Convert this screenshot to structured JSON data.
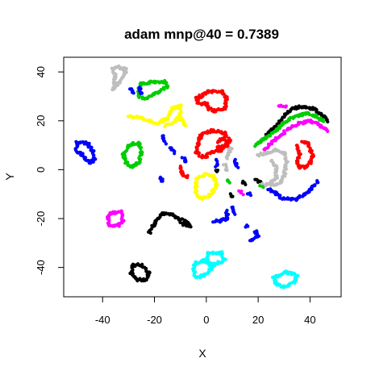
{
  "chart_data": {
    "type": "scatter",
    "title": "adam mnp@40 = 0.7389",
    "xlabel": "X",
    "ylabel": "Y",
    "xlim": [
      -55,
      52
    ],
    "ylim": [
      -52,
      46
    ],
    "xticks": [
      -40,
      -20,
      0,
      20,
      40
    ],
    "yticks": [
      -40,
      -20,
      0,
      20,
      40
    ],
    "grid": false,
    "legend": "none",
    "colors": {
      "black": "#000000",
      "red": "#ff0000",
      "green": "#00cd00",
      "blue": "#0000ff",
      "cyan": "#00ffff",
      "magenta": "#ff00ff",
      "yellow": "#ffff00",
      "gray": "#bebebe"
    },
    "clusters": [
      {
        "kind": "ring",
        "color": "gray",
        "points": [
          [
            -34,
            42
          ],
          [
            -31,
            41
          ],
          [
            -32,
            38
          ],
          [
            -34,
            35
          ],
          [
            -36,
            33
          ],
          [
            -35,
            38
          ],
          [
            -36,
            41
          ],
          [
            -34,
            42
          ]
        ]
      },
      {
        "kind": "ring",
        "color": "green",
        "points": [
          [
            -25,
            35
          ],
          [
            -20,
            36
          ],
          [
            -16,
            36
          ],
          [
            -15,
            34
          ],
          [
            -18,
            32
          ],
          [
            -23,
            29
          ],
          [
            -26,
            30
          ],
          [
            -26,
            33
          ],
          [
            -25,
            35
          ]
        ]
      },
      {
        "kind": "path",
        "color": "blue",
        "points": [
          [
            -26,
            34
          ],
          [
            -25,
            31
          ]
        ]
      },
      {
        "kind": "path",
        "color": "blue",
        "points": [
          [
            -28,
            31
          ],
          [
            -29,
            33
          ]
        ]
      },
      {
        "kind": "ring",
        "color": "red",
        "points": [
          [
            -4,
            29
          ],
          [
            1,
            32
          ],
          [
            6,
            32
          ],
          [
            8,
            29
          ],
          [
            7,
            25
          ],
          [
            3,
            24
          ],
          [
            1,
            25
          ],
          [
            0,
            27
          ],
          [
            -3,
            27
          ],
          [
            -4,
            29
          ]
        ]
      },
      {
        "kind": "path",
        "color": "yellow",
        "points": [
          [
            -30,
            22
          ],
          [
            -25,
            21
          ],
          [
            -19,
            19
          ],
          [
            -15,
            21
          ],
          [
            -13,
            25
          ],
          [
            -10,
            26
          ],
          [
            -10,
            22
          ],
          [
            -13,
            19
          ],
          [
            -16,
            18
          ]
        ]
      },
      {
        "kind": "path",
        "color": "yellow",
        "points": [
          [
            -10,
            21
          ],
          [
            -8,
            18
          ]
        ]
      },
      {
        "kind": "ring",
        "color": "blue",
        "points": [
          [
            -50,
            11
          ],
          [
            -46,
            11
          ],
          [
            -44,
            8
          ],
          [
            -43,
            4
          ],
          [
            -45,
            3
          ],
          [
            -47,
            5
          ],
          [
            -50,
            8
          ],
          [
            -50,
            11
          ]
        ]
      },
      {
        "kind": "ring",
        "color": "green",
        "points": [
          [
            -30,
            10
          ],
          [
            -26,
            11
          ],
          [
            -25,
            7
          ],
          [
            -26,
            3
          ],
          [
            -29,
            1
          ],
          [
            -31,
            3
          ],
          [
            -32,
            6
          ],
          [
            -30,
            10
          ]
        ]
      },
      {
        "kind": "ring",
        "color": "red",
        "points": [
          [
            -2,
            14
          ],
          [
            2,
            16
          ],
          [
            7,
            15
          ],
          [
            9,
            12
          ],
          [
            6,
            8
          ],
          [
            2,
            7
          ],
          [
            -1,
            5
          ],
          [
            -4,
            7
          ],
          [
            -3,
            11
          ],
          [
            -2,
            14
          ]
        ]
      },
      {
        "kind": "ring",
        "color": "red",
        "points": [
          [
            4,
            11
          ],
          [
            7,
            13
          ],
          [
            8,
            10
          ],
          [
            4,
            9
          ]
        ]
      },
      {
        "kind": "path",
        "color": "blue",
        "points": [
          [
            -17,
            14
          ],
          [
            -16,
            11
          ]
        ]
      },
      {
        "kind": "path",
        "color": "blue",
        "points": [
          [
            -14,
            9
          ],
          [
            -12,
            7
          ]
        ]
      },
      {
        "kind": "path",
        "color": "blue",
        "points": [
          [
            -9,
            5
          ],
          [
            -8,
            3
          ]
        ]
      },
      {
        "kind": "path",
        "color": "red",
        "points": [
          [
            -10,
            1
          ],
          [
            -9,
            -2
          ],
          [
            -7,
            -3
          ]
        ]
      },
      {
        "kind": "path",
        "color": "blue",
        "points": [
          [
            -18,
            -3
          ],
          [
            -17,
            -5
          ]
        ]
      },
      {
        "kind": "ring",
        "color": "yellow",
        "points": [
          [
            -4,
            -4
          ],
          [
            0,
            -2
          ],
          [
            3,
            -3
          ],
          [
            4,
            -6
          ],
          [
            2,
            -10
          ],
          [
            -2,
            -12
          ],
          [
            -4,
            -10
          ],
          [
            -4,
            -4
          ]
        ]
      },
      {
        "kind": "path",
        "color": "gray",
        "points": [
          [
            8,
            5
          ],
          [
            9,
            8
          ],
          [
            10,
            9
          ]
        ]
      },
      {
        "kind": "path",
        "color": "gray",
        "points": [
          [
            7,
            2
          ],
          [
            8,
            0
          ]
        ]
      },
      {
        "kind": "path",
        "color": "blue",
        "points": [
          [
            4,
            4
          ],
          [
            4,
            1
          ]
        ]
      },
      {
        "kind": "path",
        "color": "blue",
        "points": [
          [
            11,
            4
          ],
          [
            12,
            1
          ]
        ]
      },
      {
        "kind": "path",
        "color": "black",
        "points": [
          [
            4,
            0
          ],
          [
            4,
            -1
          ]
        ]
      },
      {
        "kind": "path",
        "color": "green",
        "points": [
          [
            8,
            -4
          ],
          [
            9,
            -5
          ]
        ]
      },
      {
        "kind": "path",
        "color": "black",
        "points": [
          [
            9,
            -10
          ],
          [
            10,
            -11
          ]
        ]
      },
      {
        "kind": "path",
        "color": "magenta",
        "points": [
          [
            13,
            -9
          ],
          [
            14,
            -10
          ]
        ]
      },
      {
        "kind": "path",
        "color": "black",
        "points": [
          [
            14,
            -5
          ],
          [
            15,
            -6
          ]
        ]
      },
      {
        "kind": "path",
        "color": "blue",
        "points": [
          [
            16,
            -10
          ],
          [
            17,
            -10
          ]
        ]
      },
      {
        "kind": "path",
        "color": "black",
        "points": [
          [
            19,
            -4
          ],
          [
            21,
            -5
          ]
        ]
      },
      {
        "kind": "path",
        "color": "green",
        "points": [
          [
            21,
            -7
          ],
          [
            22,
            -7
          ]
        ]
      },
      {
        "kind": "ring",
        "color": "magenta",
        "points": [
          [
            -37,
            -18
          ],
          [
            -33,
            -17
          ],
          [
            -32,
            -21
          ],
          [
            -34,
            -23
          ],
          [
            -37,
            -23
          ],
          [
            -38,
            -20
          ],
          [
            -37,
            -18
          ]
        ]
      },
      {
        "kind": "path",
        "color": "black",
        "points": [
          [
            -22,
            -26
          ],
          [
            -20,
            -22
          ],
          [
            -17,
            -18
          ],
          [
            -14,
            -18
          ],
          [
            -11,
            -20
          ],
          [
            -8,
            -21
          ],
          [
            -6,
            -23
          ],
          [
            -10,
            -22
          ]
        ]
      },
      {
        "kind": "path",
        "color": "blue",
        "points": [
          [
            3,
            -21
          ],
          [
            5,
            -21
          ],
          [
            8,
            -20
          ],
          [
            8,
            -17
          ]
        ]
      },
      {
        "kind": "path",
        "color": "blue",
        "points": [
          [
            10,
            -15
          ],
          [
            11,
            -18
          ]
        ]
      },
      {
        "kind": "path",
        "color": "blue",
        "points": [
          [
            15,
            -23
          ],
          [
            16,
            -23
          ]
        ]
      },
      {
        "kind": "path",
        "color": "blue",
        "points": [
          [
            19,
            -25
          ],
          [
            20,
            -27
          ],
          [
            17,
            -29
          ]
        ]
      },
      {
        "kind": "ring",
        "color": "black",
        "points": [
          [
            -28,
            -39
          ],
          [
            -25,
            -39
          ],
          [
            -22,
            -42
          ],
          [
            -23,
            -45
          ],
          [
            -27,
            -45
          ],
          [
            -29,
            -42
          ],
          [
            -28,
            -39
          ]
        ]
      },
      {
        "kind": "ring",
        "color": "cyan",
        "points": [
          [
            -4,
            -38
          ],
          [
            0,
            -37
          ],
          [
            2,
            -40
          ],
          [
            0,
            -43
          ],
          [
            -4,
            -44
          ],
          [
            -5,
            -41
          ],
          [
            -4,
            -38
          ]
        ]
      },
      {
        "kind": "ring",
        "color": "cyan",
        "points": [
          [
            1,
            -34
          ],
          [
            6,
            -34
          ],
          [
            7,
            -37
          ],
          [
            3,
            -39
          ],
          [
            0,
            -38
          ],
          [
            1,
            -34
          ]
        ]
      },
      {
        "kind": "ring",
        "color": "cyan",
        "points": [
          [
            26,
            -44
          ],
          [
            31,
            -42
          ],
          [
            35,
            -43
          ],
          [
            34,
            -46
          ],
          [
            30,
            -48
          ],
          [
            27,
            -47
          ],
          [
            26,
            -44
          ]
        ]
      },
      {
        "kind": "path",
        "color": "magenta",
        "points": [
          [
            28,
            26
          ],
          [
            31,
            26
          ]
        ]
      },
      {
        "kind": "path",
        "color": "black",
        "points": [
          [
            23,
            14
          ],
          [
            27,
            18
          ],
          [
            30,
            22
          ],
          [
            33,
            25
          ],
          [
            37,
            26
          ],
          [
            41,
            25
          ],
          [
            44,
            23
          ],
          [
            47,
            20
          ]
        ]
      },
      {
        "kind": "path",
        "color": "green",
        "points": [
          [
            19,
            10
          ],
          [
            23,
            13
          ],
          [
            27,
            16
          ],
          [
            31,
            20
          ],
          [
            35,
            22
          ],
          [
            39,
            23
          ],
          [
            42,
            22
          ],
          [
            45,
            20
          ]
        ]
      },
      {
        "kind": "path",
        "color": "magenta",
        "points": [
          [
            22,
            8
          ],
          [
            26,
            12
          ],
          [
            29,
            14
          ],
          [
            32,
            17
          ],
          [
            36,
            19
          ],
          [
            40,
            20
          ],
          [
            44,
            18
          ],
          [
            47,
            16
          ]
        ]
      },
      {
        "kind": "path",
        "color": "gray",
        "points": [
          [
            20,
            6
          ],
          [
            24,
            7
          ],
          [
            27,
            8
          ],
          [
            30,
            7
          ],
          [
            31,
            3
          ],
          [
            30,
            -2
          ],
          [
            29,
            -5
          ],
          [
            26,
            -6
          ],
          [
            22,
            -6
          ]
        ]
      },
      {
        "kind": "path",
        "color": "gray",
        "points": [
          [
            25,
            4
          ],
          [
            27,
            1
          ],
          [
            27,
            -3
          ],
          [
            25,
            -5
          ]
        ]
      },
      {
        "kind": "path",
        "color": "red",
        "points": [
          [
            35,
            10
          ],
          [
            36,
            6
          ],
          [
            35,
            3
          ],
          [
            36,
            1
          ],
          [
            38,
            1
          ],
          [
            40,
            3
          ],
          [
            41,
            6
          ],
          [
            39,
            11
          ],
          [
            37,
            11
          ]
        ]
      },
      {
        "kind": "path",
        "color": "blue",
        "points": [
          [
            24,
            -8
          ],
          [
            27,
            -10
          ],
          [
            30,
            -12
          ],
          [
            35,
            -12
          ],
          [
            38,
            -10
          ],
          [
            41,
            -7
          ],
          [
            43,
            -5
          ]
        ]
      }
    ]
  }
}
